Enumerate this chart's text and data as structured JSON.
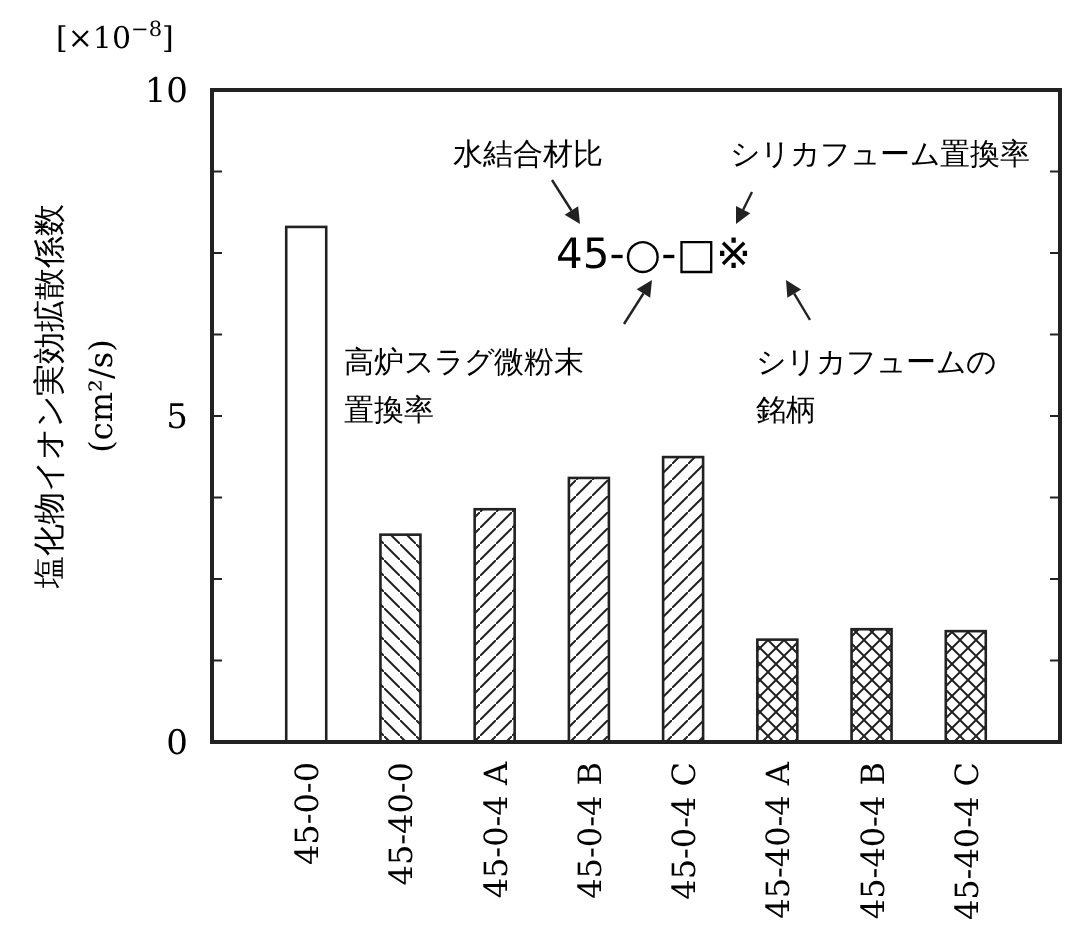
{
  "chart_data": {
    "type": "bar",
    "ylabel": "塩化物イオン実効拡散係数\n(cm²/s)",
    "categories": [
      "45-0-0",
      "45-40-0",
      "45-0-4 A",
      "45-0-4 B",
      "45-0-4 C",
      "45-40-4 A",
      "45-40-4 B",
      "45-40-4 C"
    ],
    "series": [
      {
        "color": "#ffffff",
        "values": [
          7.9,
          null,
          null,
          null,
          null,
          null,
          null,
          null
        ]
      },
      {
        "color": "#ffffff",
        "values": [
          null,
          3.18,
          null,
          null,
          null,
          null,
          null,
          null
        ]
      },
      {
        "color": "#ffffff",
        "values": [
          null,
          null,
          3.57,
          4.05,
          4.37,
          null,
          null,
          null
        ]
      },
      {
        "color": "#ffffff",
        "values": [
          null,
          null,
          null,
          null,
          null,
          1.57,
          1.73,
          1.7
        ]
      }
    ],
    "ylim": [
      0,
      10
    ],
    "yticks": [
      0,
      {
        "value": 1.25,
        "label": null
      },
      {
        "value": 2.5,
        "label": null
      },
      {
        "value": 3.75,
        "label": null
      },
      5,
      {
        "value": 6.25,
        "label": null
      },
      {
        "value": 7.5,
        "label": null
      },
      {
        "value": 8.75,
        "label": null
      },
      10
    ],
    "annotations": [
      "[×10$^{−8}$]",
      "水結合材比",
      "シリカフューム置換率",
      "45-○-□※",
      "高炉スラグ微粉末",
      "置換率",
      "シリカフュームの",
      "銘柄"
    ],
    "grid": false
  }
}
